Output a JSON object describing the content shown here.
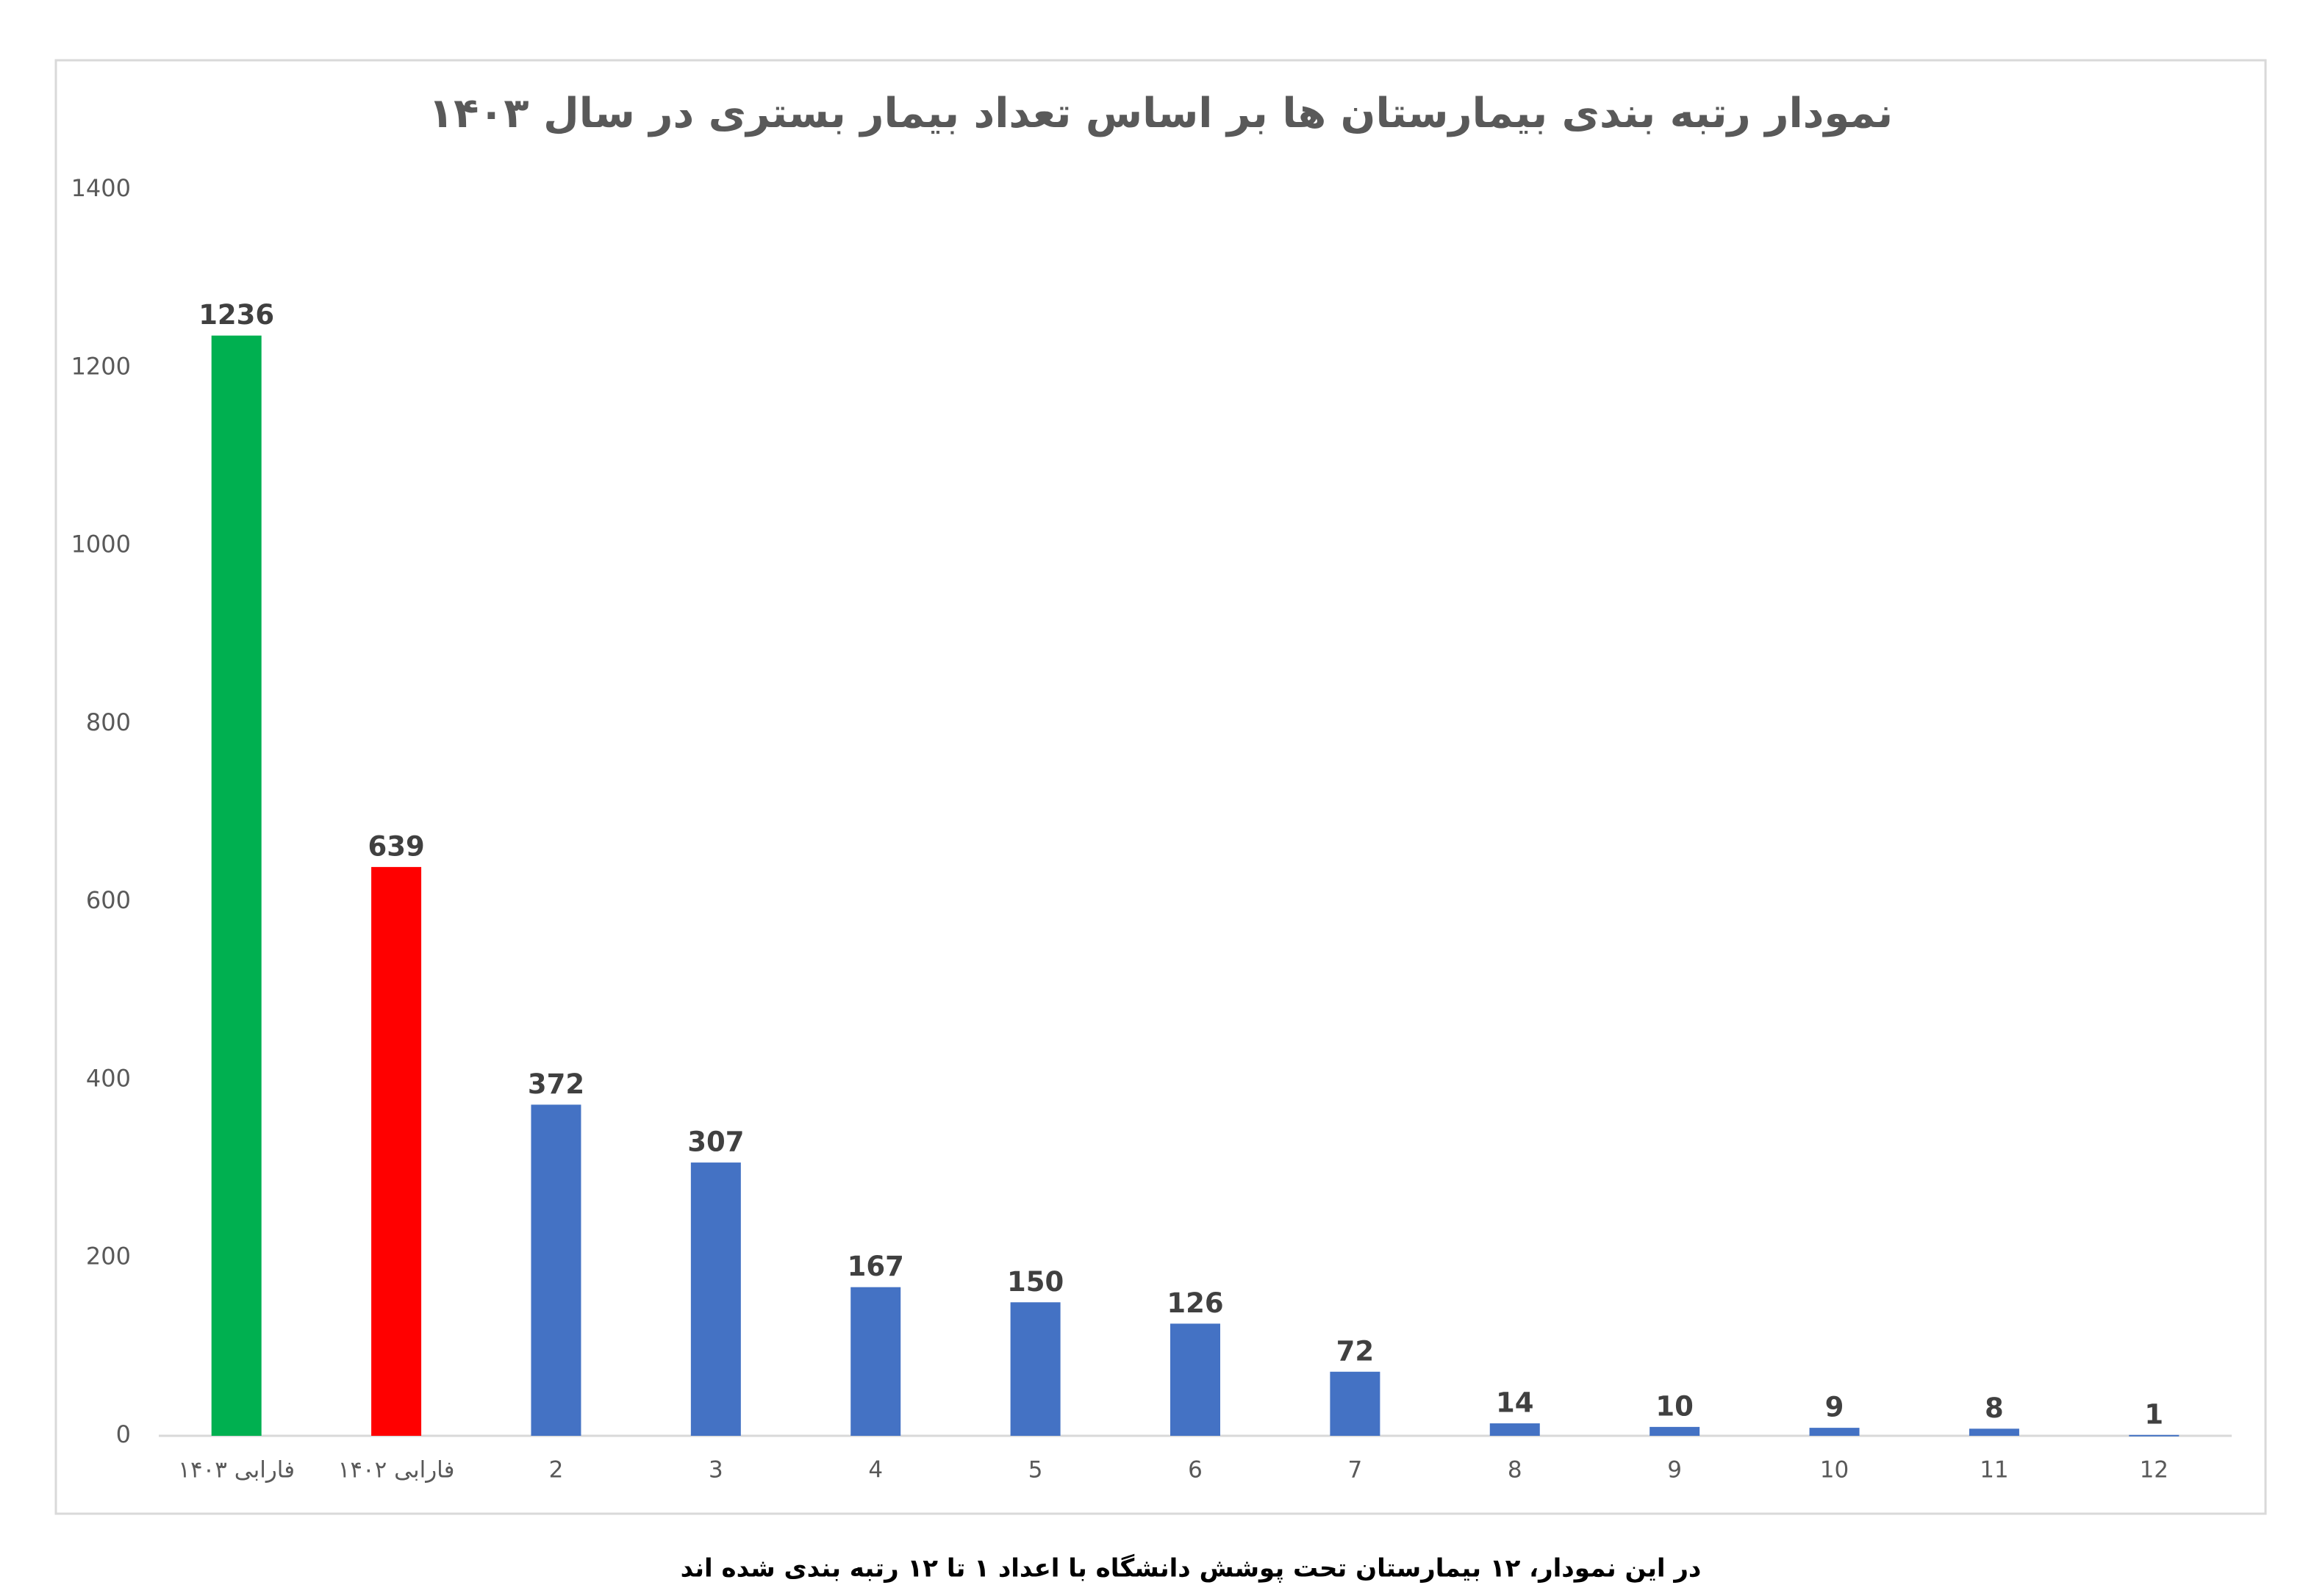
{
  "chart_data": {
    "type": "bar",
    "title": "نمودار رتبه بندی بیمارستان ها بر اساس تعداد بیمار بستری در سال ۱۴۰۳",
    "caption": "در این نمودار، ۱۲ بیمارستان تحت پوشش دانشگاه با اعداد ۱ تا ۱۲ رتبه بندی شده اند",
    "categories": [
      "فارابی ۱۴۰۳",
      "فارابی ۱۴۰۲",
      "2",
      "3",
      "4",
      "5",
      "6",
      "7",
      "8",
      "9",
      "10",
      "11",
      "12"
    ],
    "values": [
      1236,
      639,
      372,
      307,
      167,
      150,
      126,
      72,
      14,
      10,
      9,
      8,
      1
    ],
    "colors": [
      "#00b050",
      "#ff0000",
      "#4472c4",
      "#4472c4",
      "#4472c4",
      "#4472c4",
      "#4472c4",
      "#4472c4",
      "#4472c4",
      "#4472c4",
      "#4472c4",
      "#4472c4",
      "#4472c4"
    ],
    "ylim": [
      0,
      1400
    ],
    "yticks": [
      0,
      200,
      400,
      600,
      800,
      1000,
      1200,
      1400
    ],
    "grid": false
  }
}
